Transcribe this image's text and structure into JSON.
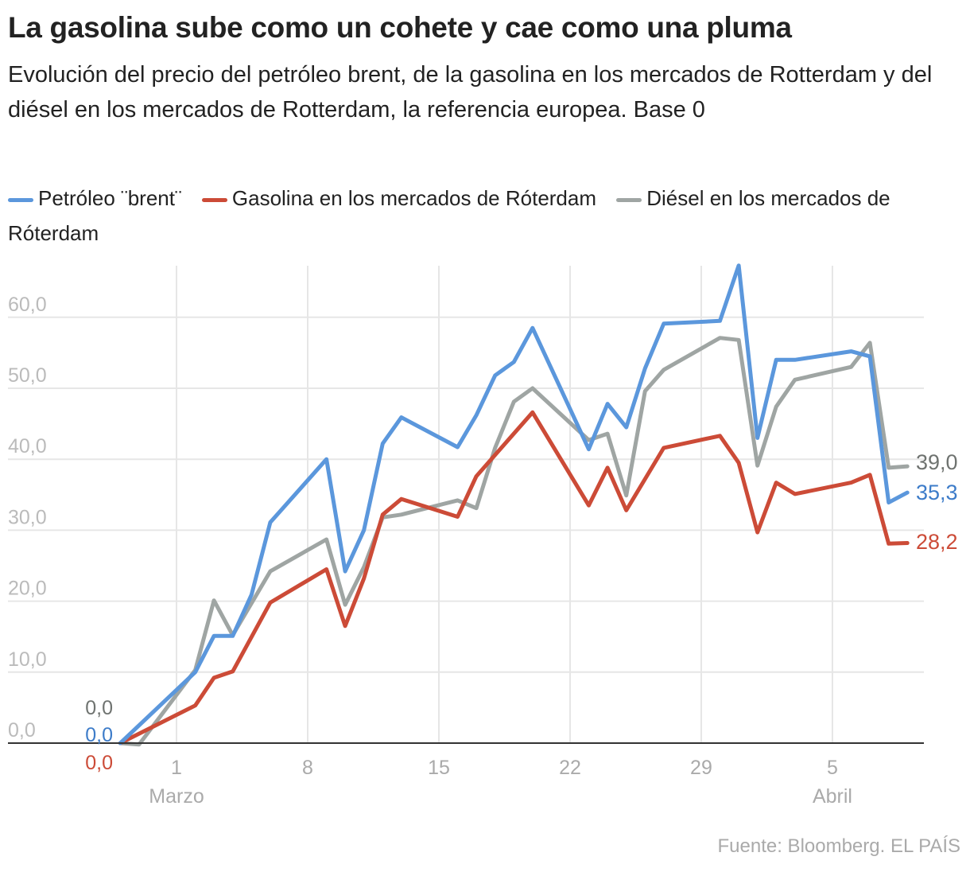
{
  "header": {
    "title": "La gasolina sube como un cohete y cae como una pluma",
    "subtitle": "Evolución del precio del petróleo brent, de la gasolina en los mercados de Rotterdam y del diésel en los mercados de Rotterdam, la referencia europea. Base 0"
  },
  "source": "Fuente: Bloomberg. EL PAÍS",
  "chart_data": {
    "type": "line",
    "xlabel": "",
    "ylabel": "",
    "ylim": [
      0,
      67
    ],
    "grid": true,
    "legend_position": "top",
    "yticks": [
      "0,0",
      "10,0",
      "20,0",
      "30,0",
      "40,0",
      "50,0",
      "60,0"
    ],
    "ytick_values": [
      0,
      10,
      20,
      30,
      40,
      50,
      60
    ],
    "xticks": [
      {
        "date": "03-01",
        "label": "1",
        "month": "Marzo"
      },
      {
        "date": "03-08",
        "label": "8",
        "month": ""
      },
      {
        "date": "03-15",
        "label": "15",
        "month": ""
      },
      {
        "date": "03-22",
        "label": "22",
        "month": ""
      },
      {
        "date": "03-29",
        "label": "29",
        "month": ""
      },
      {
        "date": "04-05",
        "label": "5",
        "month": "Abril"
      }
    ],
    "series": [
      {
        "name": "Petróleo ¨brent¨",
        "color": "#5b97dc",
        "label_color": "#3d7cc9",
        "start_label": "0,0",
        "end_label": "35,3",
        "points": [
          [
            "02-26",
            0
          ],
          [
            "03-02",
            10.0
          ],
          [
            "03-03",
            15.1
          ],
          [
            "03-04",
            15.1
          ],
          [
            "03-05",
            20.9
          ],
          [
            "03-06",
            31.1
          ],
          [
            "03-09",
            40.0
          ],
          [
            "03-10",
            24.2
          ],
          [
            "03-11",
            30.0
          ],
          [
            "03-12",
            42.2
          ],
          [
            "03-13",
            45.9
          ],
          [
            "03-16",
            41.7
          ],
          [
            "03-17",
            46.2
          ],
          [
            "03-18",
            51.8
          ],
          [
            "03-19",
            53.7
          ],
          [
            "03-20",
            58.5
          ],
          [
            "03-23",
            41.4
          ],
          [
            "03-24",
            47.8
          ],
          [
            "03-25",
            44.5
          ],
          [
            "03-26",
            52.8
          ],
          [
            "03-27",
            59.1
          ],
          [
            "03-30",
            59.5
          ],
          [
            "03-31",
            67.3
          ],
          [
            "04-01",
            43.0
          ],
          [
            "04-02",
            54.0
          ],
          [
            "04-03",
            54.0
          ],
          [
            "04-06",
            55.2
          ],
          [
            "04-07",
            54.5
          ],
          [
            "04-08",
            33.9
          ],
          [
            "04-09",
            35.3
          ]
        ]
      },
      {
        "name": "Gasolina en los mercados de Róterdam",
        "color": "#cc4b37",
        "label_color": "#cc4b37",
        "start_label": "0,0",
        "end_label": "28,2",
        "points": [
          [
            "02-26",
            0
          ],
          [
            "03-02",
            5.3
          ],
          [
            "03-03",
            9.2
          ],
          [
            "03-04",
            10.1
          ],
          [
            "03-06",
            19.8
          ],
          [
            "03-09",
            24.5
          ],
          [
            "03-10",
            16.5
          ],
          [
            "03-11",
            23.2
          ],
          [
            "03-12",
            32.2
          ],
          [
            "03-13",
            34.4
          ],
          [
            "03-16",
            31.9
          ],
          [
            "03-17",
            37.6
          ],
          [
            "03-20",
            46.6
          ],
          [
            "03-23",
            33.5
          ],
          [
            "03-24",
            38.8
          ],
          [
            "03-25",
            32.8
          ],
          [
            "03-27",
            41.6
          ],
          [
            "03-30",
            43.3
          ],
          [
            "03-31",
            39.5
          ],
          [
            "04-01",
            29.7
          ],
          [
            "04-02",
            36.7
          ],
          [
            "04-03",
            35.1
          ],
          [
            "04-06",
            36.7
          ],
          [
            "04-07",
            37.8
          ],
          [
            "04-08",
            28.1
          ],
          [
            "04-09",
            28.2
          ]
        ]
      },
      {
        "name": "Diésel en los mercados de Róterdam",
        "color": "#9fa5a3",
        "label_color": "#6f7370",
        "start_label": "0,0",
        "end_label": "39,0",
        "points": [
          [
            "02-26",
            0
          ],
          [
            "02-27",
            -0.2
          ],
          [
            "03-02",
            10.3
          ],
          [
            "03-03",
            20.1
          ],
          [
            "03-04",
            15.2
          ],
          [
            "03-06",
            24.2
          ],
          [
            "03-09",
            28.7
          ],
          [
            "03-10",
            19.5
          ],
          [
            "03-11",
            24.8
          ],
          [
            "03-12",
            31.8
          ],
          [
            "03-13",
            32.2
          ],
          [
            "03-16",
            34.2
          ],
          [
            "03-17",
            33.1
          ],
          [
            "03-18",
            41.6
          ],
          [
            "03-19",
            48.1
          ],
          [
            "03-20",
            50.0
          ],
          [
            "03-23",
            42.7
          ],
          [
            "03-24",
            43.6
          ],
          [
            "03-25",
            34.9
          ],
          [
            "03-26",
            49.6
          ],
          [
            "03-27",
            52.6
          ],
          [
            "03-30",
            57.1
          ],
          [
            "03-31",
            56.8
          ],
          [
            "04-01",
            39.1
          ],
          [
            "04-02",
            47.4
          ],
          [
            "04-03",
            51.2
          ],
          [
            "04-06",
            53.0
          ],
          [
            "04-07",
            56.4
          ],
          [
            "04-08",
            38.8
          ],
          [
            "04-09",
            39.0
          ]
        ]
      }
    ]
  }
}
